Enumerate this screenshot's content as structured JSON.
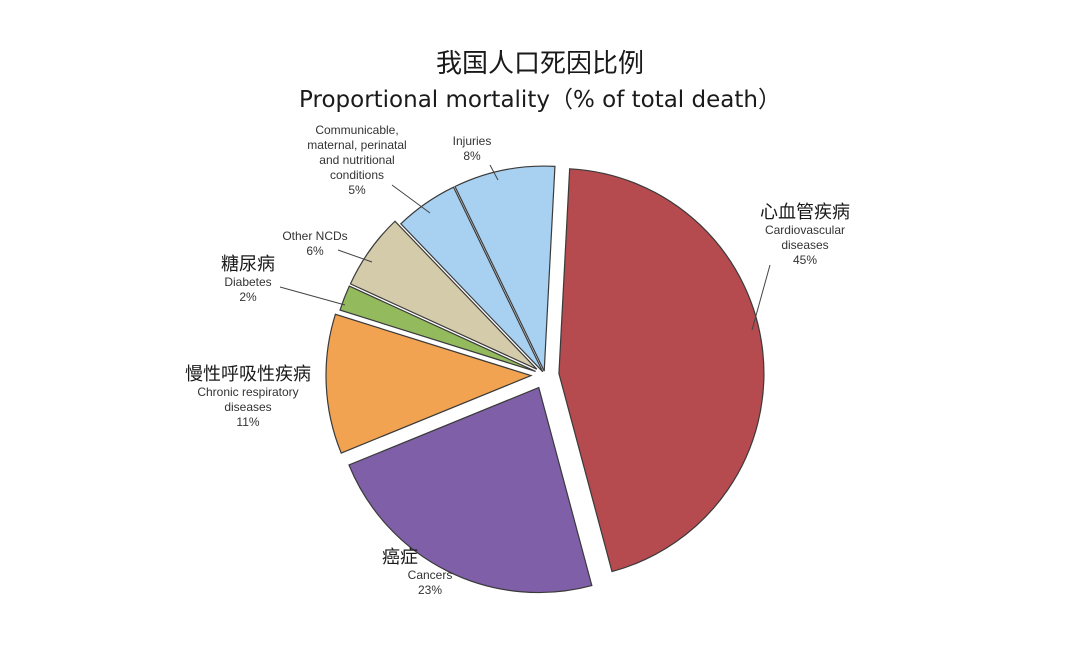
{
  "chart_data": {
    "type": "pie",
    "title": "我国人口死因比例",
    "subtitle": "Proportional mortality（% of total death）",
    "slices": [
      {
        "key": "cardio",
        "label_cn": "心血管疾病",
        "label_en_lines": [
          "Cardiovascular",
          "diseases"
        ],
        "value_text": "45%",
        "value": 45,
        "color": "#b54a4f"
      },
      {
        "key": "cancer",
        "label_cn": "癌症",
        "label_en_lines": [
          "Cancers"
        ],
        "value_text": "23%",
        "value": 23,
        "color": "#7f5fa8"
      },
      {
        "key": "respiratory",
        "label_cn": "慢性呼吸性疾病",
        "label_en_lines": [
          "Chronic respiratory",
          "diseases"
        ],
        "value_text": "11%",
        "value": 11,
        "color": "#f2a352"
      },
      {
        "key": "diabetes",
        "label_cn": "糖尿病",
        "label_en_lines": [
          "Diabetes"
        ],
        "value_text": "2%",
        "value": 2,
        "color": "#93ba5c"
      },
      {
        "key": "other_ncd",
        "label_cn": "",
        "label_en_lines": [
          "Other NCDs"
        ],
        "value_text": "6%",
        "value": 6,
        "color": "#d4cbaa"
      },
      {
        "key": "communicable",
        "label_cn": "",
        "label_en_lines": [
          "Communicable,",
          "maternal, perinatal",
          "and nutritional",
          "conditions"
        ],
        "value_text": "5%",
        "value": 5,
        "color": "#a7d0f1"
      },
      {
        "key": "injuries",
        "label_cn": "",
        "label_en_lines": [
          "Injuries"
        ],
        "value_text": "8%",
        "value": 8,
        "color": "#a7d0f1"
      }
    ],
    "legend": "none"
  }
}
